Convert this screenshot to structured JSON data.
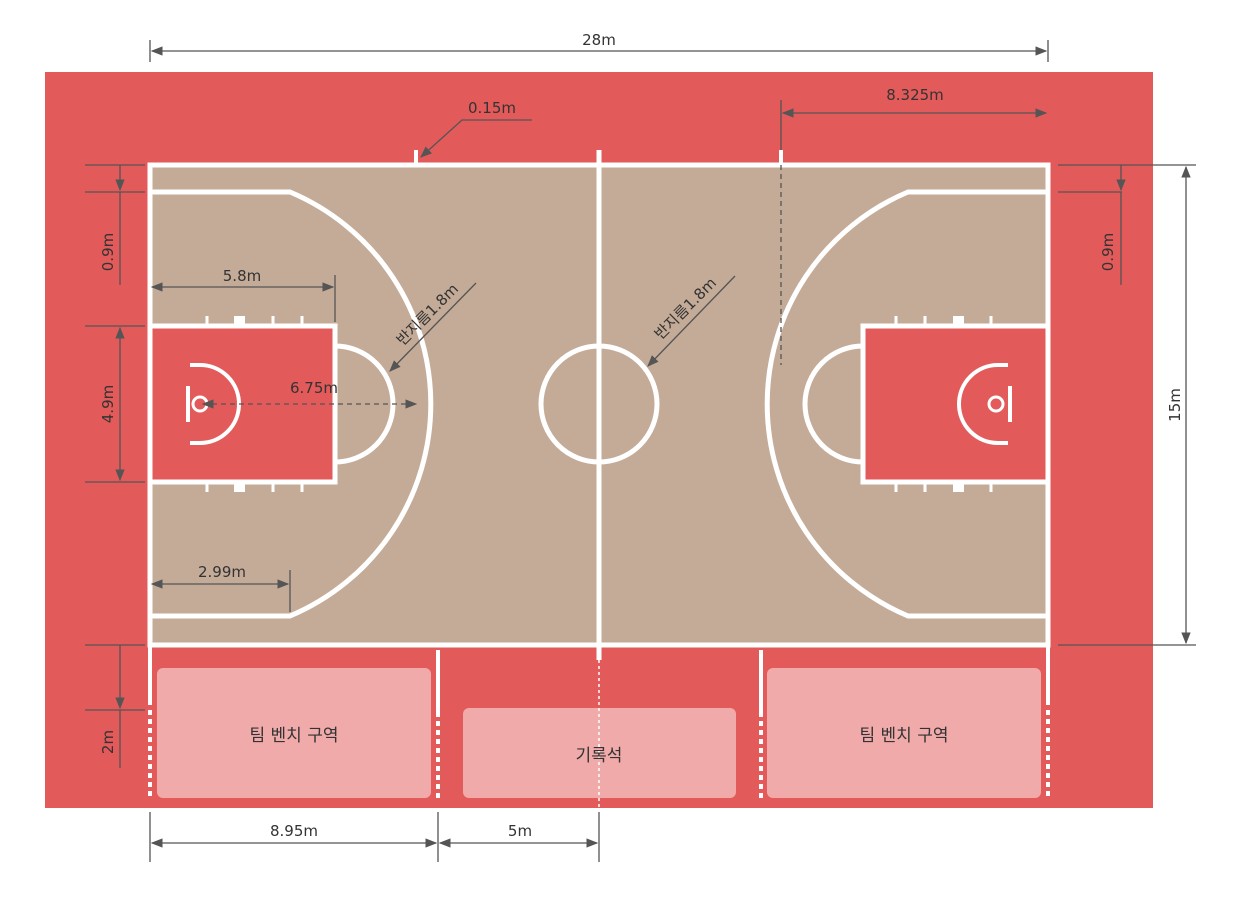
{
  "colors": {
    "surround": "#e35a5a",
    "court": "#c4ab98",
    "key": "#e35a5a",
    "bench_zone": "#f1aaaa",
    "lines": "#ffffff",
    "dimension": "#555555"
  },
  "dimensions": {
    "court_length": "28m",
    "line_width": "0.15m",
    "substitution_mark": "8.325m",
    "three_point_offset_left": "0.9m",
    "three_point_offset_right": "0.9m",
    "key_length": "5.8m",
    "key_width": "4.9m",
    "three_point_radius": "6.75m",
    "corner_distance": "2.99m",
    "court_width": "15m",
    "bench_depth": "2m",
    "bench_length": "8.95m",
    "table_half": "5m",
    "free_throw_radius": "반지름1.8m",
    "center_circle_radius": "반지름1.8m"
  },
  "zones": {
    "team_bench_left": "팀 벤치 구역",
    "scorer_table": "기록석",
    "team_bench_right": "팀 벤치 구역"
  }
}
